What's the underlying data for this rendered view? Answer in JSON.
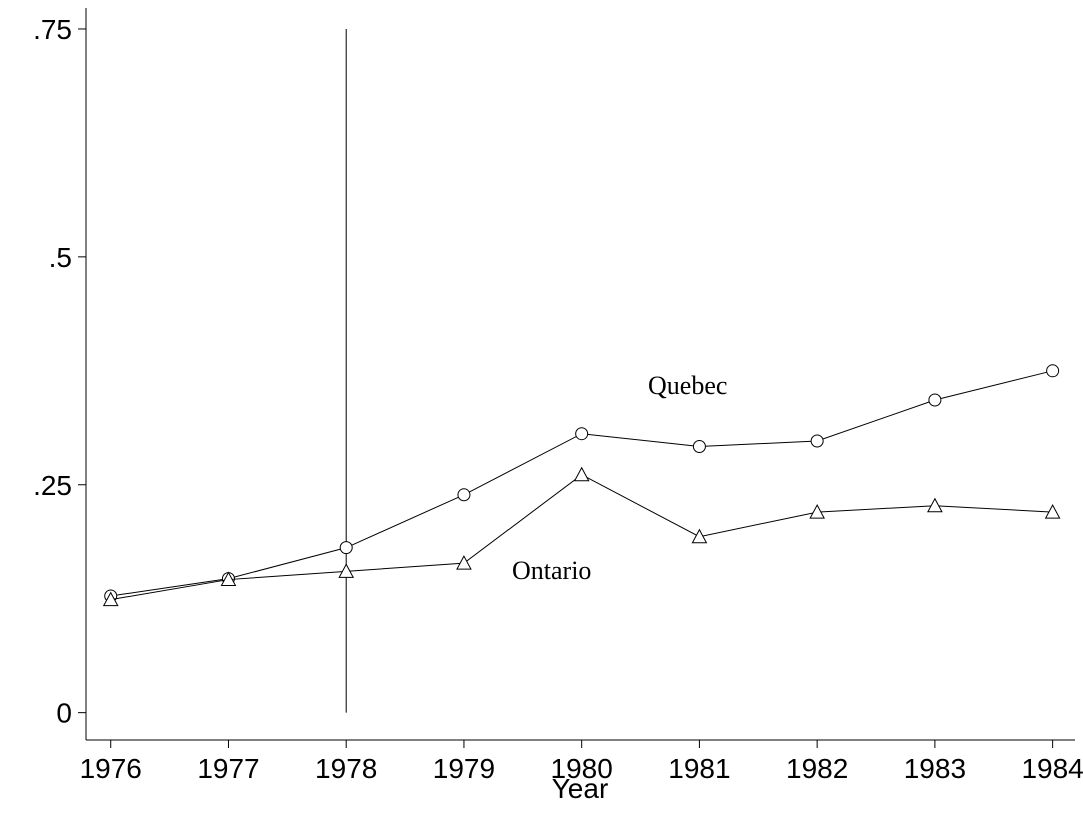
{
  "chart_data": {
    "type": "line",
    "x_label": "Year",
    "x": [
      1976,
      1977,
      1978,
      1979,
      1980,
      1981,
      1982,
      1983,
      1984
    ],
    "series": [
      {
        "name": "Quebec",
        "color": "#000000",
        "marker": "circle",
        "values": [
          0.128,
          0.147,
          0.181,
          0.239,
          0.306,
          0.292,
          0.298,
          0.343,
          0.375
        ]
      },
      {
        "name": "Ontario",
        "color": "#000000",
        "marker": "triangle",
        "values": [
          0.124,
          0.146,
          0.155,
          0.164,
          0.261,
          0.193,
          0.22,
          0.227,
          0.22
        ]
      }
    ],
    "vlines": [
      1978
    ],
    "xlim": [
      1975.79,
      1984.19
    ],
    "xticks": [
      1976,
      1977,
      1978,
      1979,
      1980,
      1981,
      1982,
      1983,
      1984
    ],
    "ylim": [
      -0.03,
      0.773
    ],
    "yticks": [
      0,
      {
        "value": 0.25,
        "label": ".25"
      },
      {
        "value": 0.5,
        "label": ".5"
      },
      {
        "value": 0.75,
        "label": ".75"
      }
    ],
    "grid": false
  }
}
